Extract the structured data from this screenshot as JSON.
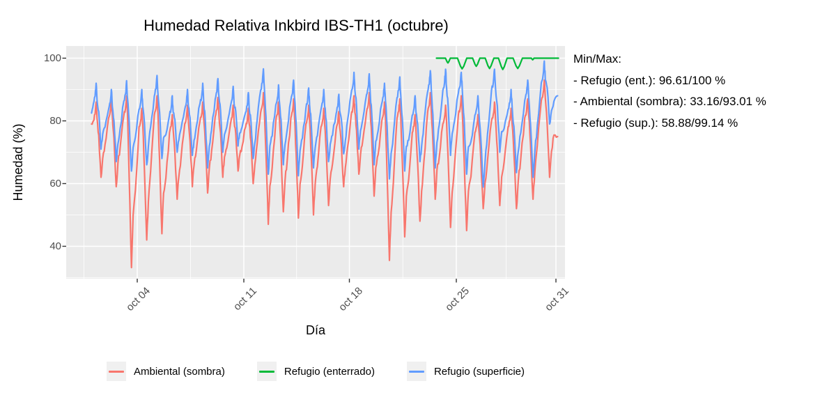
{
  "figure": {
    "title": "Humedad Relativa Inkbird IBS-TH1 (octubre)"
  },
  "axes": {
    "x": {
      "label": "Día",
      "tick_labels": [
        "oct 04",
        "oct 11",
        "oct 18",
        "oct 25",
        "oct 31"
      ],
      "tick_days": [
        4,
        11,
        18,
        25,
        31
      ]
    },
    "y": {
      "label": "Humedad (%)",
      "tick_values": [
        100,
        80,
        60,
        40
      ],
      "minor_values": [
        90,
        70,
        50,
        30
      ]
    }
  },
  "annotation": {
    "heading": "Min/Max:",
    "lines": [
      "- Refugio (ent.): 96.61/100 %",
      "- Ambiental (sombra): 33.16/93.01 %",
      "- Refugio (sup.): 58.88/99.14 %"
    ]
  },
  "legend": {
    "items": [
      {
        "label": "Ambiental (sombra)",
        "color": "#F8766D"
      },
      {
        "label": "Refugio (enterrado)",
        "color": "#00BA38"
      },
      {
        "label": "Refugio (superficie)",
        "color": "#619CFF"
      }
    ]
  },
  "colors": {
    "panel_background": "#EBEBEB",
    "gridline": "#FFFFFF",
    "tick_mark": "#333333",
    "tick_text": "#4D4D4D",
    "series_red": "#F8766D",
    "series_green": "#00BA38",
    "series_blue": "#619CFF",
    "legend_key_background": "#F0F0F0"
  },
  "chart_data": {
    "type": "line",
    "title": "Humedad Relativa Inkbird IBS-TH1 (octubre)",
    "xlabel": "Día",
    "ylabel": "Humedad (%)",
    "x_unit": "day of October",
    "x_range_days": [
      1,
      31.4
    ],
    "y_ticks": [
      40,
      60,
      80,
      100
    ],
    "x_ticks": [
      "oct 04",
      "oct 11",
      "oct 18",
      "oct 25",
      "oct 31"
    ],
    "x_tick_days": [
      4,
      11,
      18,
      25,
      31
    ],
    "grid": true,
    "legend_position": "bottom",
    "note": "Diurnal humidity cycles: values peak each morning and dip each afternoon; daily_peak/daily_trough give the read-off extremes for days 1-30 of October.",
    "series": [
      {
        "name": "Ambiental (sombra)",
        "color": "#F8766D",
        "stated_min": 33.16,
        "stated_max": 93.01,
        "start_value": 79,
        "end_value": 75,
        "daily_peak": [
          86,
          87,
          88,
          84,
          88,
          82,
          85,
          86,
          87.5,
          85,
          84,
          89,
          86,
          87,
          85,
          84,
          83,
          88,
          89,
          86,
          87,
          82,
          89,
          85,
          88,
          82,
          86,
          84,
          87,
          93
        ],
        "daily_trough": [
          62,
          59,
          33.2,
          42,
          44,
          55,
          59,
          57,
          62,
          64,
          60,
          47,
          51,
          49,
          50,
          53,
          59,
          63,
          56,
          35.5,
          43,
          48,
          55,
          46,
          45,
          52,
          53,
          52,
          55,
          62
        ]
      },
      {
        "name": "Refugio (superficie)",
        "color": "#619CFF",
        "stated_min": 58.88,
        "stated_max": 99.14,
        "start_value": 82.5,
        "end_value": 88,
        "daily_peak": [
          92,
          90,
          92.8,
          90,
          94.5,
          88,
          90,
          92,
          93.5,
          91,
          89,
          96.6,
          91.5,
          93,
          90.5,
          90,
          88.5,
          95.5,
          95,
          92,
          94,
          88,
          96,
          96.5,
          95.5,
          88,
          96.5,
          90,
          93,
          99.1
        ],
        "daily_trough": [
          71,
          67,
          64,
          66,
          68,
          70,
          69,
          65,
          70,
          72,
          68,
          63,
          66,
          62.5,
          65,
          67,
          69.5,
          71,
          66,
          61.5,
          64,
          67,
          65,
          69,
          63,
          58.9,
          70,
          63.5,
          62,
          79
        ]
      },
      {
        "name": "Refugio (enterrado)",
        "color": "#00BA38",
        "stated_min": 96.61,
        "stated_max": 100,
        "baseline": 100,
        "start_day": 23.7,
        "end_day": 31.15,
        "dips": [
          {
            "day": 24.45,
            "value": 98.5,
            "w": 0.16
          },
          {
            "day": 25.35,
            "value": 96.6,
            "w": 0.28
          },
          {
            "day": 26.2,
            "value": 97.4,
            "w": 0.22
          },
          {
            "day": 27.0,
            "value": 96.7,
            "w": 0.26
          },
          {
            "day": 27.8,
            "value": 96.4,
            "w": 0.26
          },
          {
            "day": 28.7,
            "value": 96.7,
            "w": 0.28
          },
          {
            "day": 29.6,
            "value": 99.5,
            "w": 0.08
          }
        ]
      }
    ]
  }
}
